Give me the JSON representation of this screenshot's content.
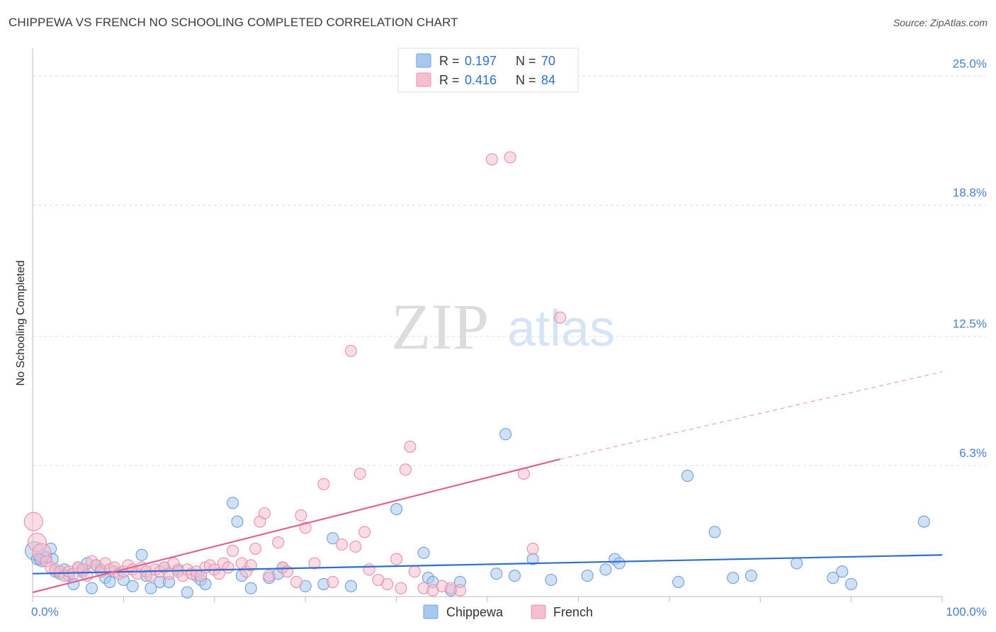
{
  "title": "CHIPPEWA VS FRENCH NO SCHOOLING COMPLETED CORRELATION CHART",
  "source": "Source: ZipAtlas.com",
  "watermark": {
    "zip": "ZIP",
    "atlas": "atlas"
  },
  "colors": {
    "blue_fill": "#a9c8ef",
    "blue_stroke": "#6f9fd8",
    "blue_line": "#2d6fcf",
    "pink_fill": "#f6bfcf",
    "pink_stroke": "#e88fab",
    "pink_line": "#e0648e",
    "axis_text": "#4a7fd0",
    "grid": "#dddddd"
  },
  "legend": {
    "rows": [
      {
        "r_label": "R =",
        "r_value": "0.197",
        "n_label": "N =",
        "n_value": "70",
        "series": "Chippewa"
      },
      {
        "r_label": "R =",
        "r_value": "0.416",
        "n_label": "N =",
        "n_value": "84",
        "series": "French"
      }
    ]
  },
  "bottom_legend": [
    "Chippewa",
    "French"
  ],
  "chart_data": {
    "type": "scatter",
    "title": "CHIPPEWA VS FRENCH NO SCHOOLING COMPLETED CORRELATION CHART",
    "xlabel": "",
    "ylabel": "No Schooling Completed",
    "xlim": [
      0,
      100
    ],
    "ylim": [
      0,
      26
    ],
    "x_tick_labels": [
      "0.0%",
      "100.0%"
    ],
    "y_ticks": [
      6.3,
      12.5,
      18.8,
      25.0
    ],
    "y_tick_labels": [
      "6.3%",
      "12.5%",
      "18.8%",
      "25.0%"
    ],
    "grid": true,
    "series": [
      {
        "name": "Chippewa",
        "r": 0.197,
        "n": 70,
        "trend": {
          "x0": 0,
          "y0": 1.1,
          "x1": 100,
          "y1": 2.0
        },
        "points": [
          [
            0.2,
            2.2
          ],
          [
            0.5,
            1.8
          ],
          [
            1.0,
            1.7
          ],
          [
            1.5,
            1.9
          ],
          [
            2.0,
            2.3
          ],
          [
            2.2,
            1.8
          ],
          [
            2.5,
            1.2
          ],
          [
            3.0,
            1.1
          ],
          [
            3.5,
            1.3
          ],
          [
            4.0,
            1.0
          ],
          [
            4.5,
            0.6
          ],
          [
            5.0,
            1.4
          ],
          [
            5.5,
            1.2
          ],
          [
            6.0,
            1.6
          ],
          [
            6.5,
            0.4
          ],
          [
            7.0,
            1.5
          ],
          [
            7.5,
            1.3
          ],
          [
            8.0,
            0.9
          ],
          [
            8.5,
            0.7
          ],
          [
            9.0,
            1.2
          ],
          [
            10.0,
            0.8
          ],
          [
            11.0,
            0.5
          ],
          [
            12.0,
            2.0
          ],
          [
            12.5,
            1.0
          ],
          [
            13.0,
            0.4
          ],
          [
            14.0,
            0.7
          ],
          [
            14.5,
            1.4
          ],
          [
            15.0,
            0.7
          ],
          [
            16.0,
            1.3
          ],
          [
            17.0,
            0.2
          ],
          [
            18.0,
            1.0
          ],
          [
            18.5,
            0.8
          ],
          [
            19.0,
            0.6
          ],
          [
            22.0,
            4.5
          ],
          [
            22.5,
            3.6
          ],
          [
            23.0,
            1.0
          ],
          [
            24.0,
            0.4
          ],
          [
            26.0,
            0.9
          ],
          [
            27.0,
            1.1
          ],
          [
            27.5,
            1.4
          ],
          [
            30.0,
            0.5
          ],
          [
            32.0,
            0.6
          ],
          [
            33.0,
            2.8
          ],
          [
            35.0,
            0.5
          ],
          [
            40.0,
            4.2
          ],
          [
            43.0,
            2.1
          ],
          [
            43.5,
            0.9
          ],
          [
            44.0,
            0.7
          ],
          [
            46.0,
            0.3
          ],
          [
            47.0,
            0.7
          ],
          [
            51.0,
            1.1
          ],
          [
            52.0,
            7.8
          ],
          [
            53.0,
            1.0
          ],
          [
            55.0,
            1.8
          ],
          [
            57.0,
            0.8
          ],
          [
            61.0,
            1.0
          ],
          [
            63.0,
            1.3
          ],
          [
            64.0,
            1.8
          ],
          [
            64.5,
            1.6
          ],
          [
            71.0,
            0.7
          ],
          [
            72.0,
            5.8
          ],
          [
            75.0,
            3.1
          ],
          [
            77.0,
            0.9
          ],
          [
            79.0,
            1.0
          ],
          [
            84.0,
            1.6
          ],
          [
            88.0,
            0.9
          ],
          [
            89.0,
            1.2
          ],
          [
            90.0,
            0.6
          ],
          [
            98.0,
            3.6
          ],
          [
            0.8,
            1.8
          ]
        ]
      },
      {
        "name": "French",
        "r": 0.416,
        "n": 84,
        "trend": {
          "x0": 0,
          "y0": 0.2,
          "x1": 58,
          "y1": 6.6,
          "dash_x1": 100,
          "dash_y1": 10.8
        },
        "points": [
          [
            0.1,
            3.6
          ],
          [
            0.5,
            2.6
          ],
          [
            1.0,
            2.1
          ],
          [
            1.5,
            1.7
          ],
          [
            2.0,
            1.4
          ],
          [
            2.5,
            1.3
          ],
          [
            3.0,
            1.2
          ],
          [
            3.5,
            1.0
          ],
          [
            4.0,
            1.2
          ],
          [
            4.5,
            1.1
          ],
          [
            5.0,
            1.4
          ],
          [
            5.5,
            1.3
          ],
          [
            6.0,
            1.0
          ],
          [
            6.5,
            1.7
          ],
          [
            7.0,
            1.5
          ],
          [
            7.5,
            1.2
          ],
          [
            8.0,
            1.6
          ],
          [
            8.5,
            1.3
          ],
          [
            9.0,
            1.4
          ],
          [
            9.5,
            1.1
          ],
          [
            10.0,
            1.2
          ],
          [
            10.5,
            1.5
          ],
          [
            11.0,
            1.3
          ],
          [
            11.5,
            1.1
          ],
          [
            12.0,
            1.4
          ],
          [
            12.5,
            1.2
          ],
          [
            13.0,
            1.0
          ],
          [
            13.5,
            1.3
          ],
          [
            14.0,
            1.2
          ],
          [
            14.5,
            1.4
          ],
          [
            15.0,
            1.1
          ],
          [
            15.5,
            1.6
          ],
          [
            16.0,
            1.2
          ],
          [
            16.5,
            1.0
          ],
          [
            17.0,
            1.3
          ],
          [
            17.5,
            1.1
          ],
          [
            18.0,
            1.2
          ],
          [
            18.5,
            1.0
          ],
          [
            19.0,
            1.4
          ],
          [
            19.5,
            1.5
          ],
          [
            20.0,
            1.3
          ],
          [
            20.5,
            1.1
          ],
          [
            21.0,
            1.6
          ],
          [
            21.5,
            1.4
          ],
          [
            22.0,
            2.2
          ],
          [
            23.0,
            1.6
          ],
          [
            23.5,
            1.2
          ],
          [
            24.0,
            1.5
          ],
          [
            24.5,
            2.3
          ],
          [
            25.0,
            3.6
          ],
          [
            25.5,
            4.0
          ],
          [
            26.0,
            1.0
          ],
          [
            27.0,
            2.6
          ],
          [
            27.5,
            1.4
          ],
          [
            28.0,
            1.2
          ],
          [
            29.0,
            0.7
          ],
          [
            29.5,
            3.9
          ],
          [
            30.0,
            3.3
          ],
          [
            31.0,
            1.6
          ],
          [
            32.0,
            5.4
          ],
          [
            33.0,
            0.7
          ],
          [
            34.0,
            2.5
          ],
          [
            35.0,
            11.8
          ],
          [
            35.5,
            2.4
          ],
          [
            36.0,
            5.9
          ],
          [
            36.5,
            3.1
          ],
          [
            37.0,
            1.3
          ],
          [
            38.0,
            0.8
          ],
          [
            39.0,
            0.6
          ],
          [
            40.0,
            1.8
          ],
          [
            40.5,
            0.4
          ],
          [
            41.0,
            6.1
          ],
          [
            41.5,
            7.2
          ],
          [
            42.0,
            1.2
          ],
          [
            43.0,
            0.4
          ],
          [
            44.0,
            0.3
          ],
          [
            45.0,
            0.5
          ],
          [
            46.0,
            0.4
          ],
          [
            47.0,
            0.3
          ],
          [
            50.5,
            21.0
          ],
          [
            52.5,
            21.1
          ],
          [
            54.0,
            5.9
          ],
          [
            55.0,
            2.3
          ],
          [
            58.0,
            13.4
          ]
        ]
      }
    ]
  }
}
